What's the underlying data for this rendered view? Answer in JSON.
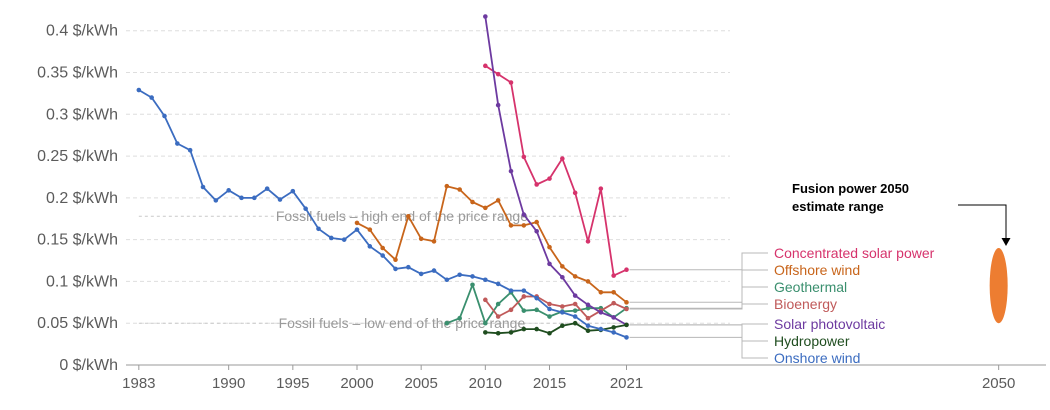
{
  "chart_data": {
    "type": "line",
    "title": "",
    "xlabel": "",
    "ylabel": "",
    "xlim": [
      1982,
      2054
    ],
    "ylim": [
      0,
      0.42
    ],
    "y_unit": "$/kWh",
    "y_ticks": [
      {
        "value": 0,
        "label": "0 $/kWh"
      },
      {
        "value": 0.05,
        "label": "0.05 $/kWh"
      },
      {
        "value": 0.1,
        "label": "0.1 $/kWh"
      },
      {
        "value": 0.15,
        "label": "0.15 $/kWh"
      },
      {
        "value": 0.2,
        "label": "0.2 $/kWh"
      },
      {
        "value": 0.25,
        "label": "0.25 $/kWh"
      },
      {
        "value": 0.3,
        "label": "0.3 $/kWh"
      },
      {
        "value": 0.35,
        "label": "0.35 $/kWh"
      },
      {
        "value": 0.4,
        "label": "0.4 $/kWh"
      }
    ],
    "x_ticks": [
      {
        "value": 1983,
        "label": "1983"
      },
      {
        "value": 1990,
        "label": "1990"
      },
      {
        "value": 1995,
        "label": "1995"
      },
      {
        "value": 2000,
        "label": "2000"
      },
      {
        "value": 2005,
        "label": "2005"
      },
      {
        "value": 2010,
        "label": "2010"
      },
      {
        "value": 2015,
        "label": "2015"
      },
      {
        "value": 2021,
        "label": "2021"
      },
      {
        "value": 2050,
        "label": "2050"
      }
    ],
    "grid": true,
    "reference_lines": [
      {
        "label": "Fossil fuels – high end of the price range",
        "value": 0.178,
        "x_start": 1983,
        "x_end": 2021,
        "color": "#c9c9c9"
      },
      {
        "label": "Fossil fuels – low end of the price range",
        "value": 0.05,
        "x_start": 1983,
        "x_end": 2021,
        "color": "#c9c9c9"
      }
    ],
    "series": [
      {
        "name": "Concentrated solar power",
        "color": "#d6336c",
        "x": [
          2010,
          2011,
          2012,
          2013,
          2014,
          2015,
          2016,
          2017,
          2018,
          2019,
          2020,
          2021
        ],
        "values": [
          0.358,
          0.348,
          0.338,
          0.249,
          0.216,
          0.223,
          0.247,
          0.206,
          0.148,
          0.211,
          0.107,
          0.114
        ]
      },
      {
        "name": "Offshore wind",
        "color": "#c8651b",
        "x": [
          2000,
          2001,
          2002,
          2003,
          2004,
          2005,
          2006,
          2007,
          2008,
          2009,
          2010,
          2011,
          2012,
          2013,
          2014,
          2015,
          2016,
          2017,
          2018,
          2019,
          2020,
          2021
        ],
        "values": [
          0.17,
          0.162,
          0.14,
          0.126,
          0.178,
          0.151,
          0.148,
          0.214,
          0.21,
          0.195,
          0.188,
          0.197,
          0.167,
          0.167,
          0.171,
          0.141,
          0.118,
          0.106,
          0.1,
          0.087,
          0.087,
          0.075
        ]
      },
      {
        "name": "Geothermal",
        "color": "#3a8f6e",
        "x": [
          2007,
          2008,
          2009,
          2010,
          2011,
          2012,
          2013,
          2014,
          2015,
          2016,
          2017,
          2018,
          2019,
          2020,
          2021
        ],
        "values": [
          0.05,
          0.056,
          0.096,
          0.05,
          0.073,
          0.087,
          0.065,
          0.066,
          0.058,
          0.064,
          0.065,
          0.068,
          0.068,
          0.057,
          0.068
        ]
      },
      {
        "name": "Bioenergy",
        "color": "#c05a5a",
        "x": [
          2010,
          2011,
          2012,
          2013,
          2014,
          2015,
          2016,
          2017,
          2018,
          2019,
          2020,
          2021
        ],
        "values": [
          0.078,
          0.058,
          0.066,
          0.082,
          0.082,
          0.073,
          0.07,
          0.073,
          0.056,
          0.065,
          0.074,
          0.067
        ]
      },
      {
        "name": "Solar photovoltaic",
        "color": "#6d3aa0",
        "x": [
          2010,
          2011,
          2012,
          2013,
          2014,
          2015,
          2016,
          2017,
          2018,
          2019,
          2020,
          2021
        ],
        "values": [
          0.417,
          0.311,
          0.232,
          0.18,
          0.16,
          0.121,
          0.105,
          0.083,
          0.072,
          0.063,
          0.057,
          0.048
        ]
      },
      {
        "name": "Hydropower",
        "color": "#1f4d1f",
        "x": [
          2010,
          2011,
          2012,
          2013,
          2014,
          2015,
          2016,
          2017,
          2018,
          2019,
          2020,
          2021
        ],
        "values": [
          0.039,
          0.038,
          0.039,
          0.043,
          0.043,
          0.038,
          0.047,
          0.05,
          0.041,
          0.042,
          0.045,
          0.048
        ]
      },
      {
        "name": "Onshore wind",
        "color": "#3b6cc0",
        "x": [
          1983,
          1984,
          1985,
          1986,
          1987,
          1988,
          1989,
          1990,
          1991,
          1992,
          1993,
          1994,
          1995,
          1996,
          1997,
          1998,
          1999,
          2000,
          2001,
          2002,
          2003,
          2004,
          2005,
          2006,
          2007,
          2008,
          2009,
          2010,
          2011,
          2012,
          2013,
          2014,
          2015,
          2016,
          2017,
          2018,
          2019,
          2020,
          2021
        ],
        "values": [
          0.329,
          0.32,
          0.298,
          0.265,
          0.257,
          0.213,
          0.197,
          0.209,
          0.2,
          0.2,
          0.211,
          0.198,
          0.208,
          0.187,
          0.163,
          0.152,
          0.15,
          0.162,
          0.142,
          0.131,
          0.115,
          0.117,
          0.109,
          0.113,
          0.102,
          0.108,
          0.106,
          0.102,
          0.097,
          0.089,
          0.089,
          0.08,
          0.067,
          0.063,
          0.058,
          0.047,
          0.043,
          0.039,
          0.033
        ]
      }
    ],
    "estimate": {
      "label_line1": "Fusion power 2050",
      "label_line2": "estimate range",
      "x": 2050,
      "low": 0.05,
      "high": 0.14,
      "color": "#ed7d31"
    }
  }
}
